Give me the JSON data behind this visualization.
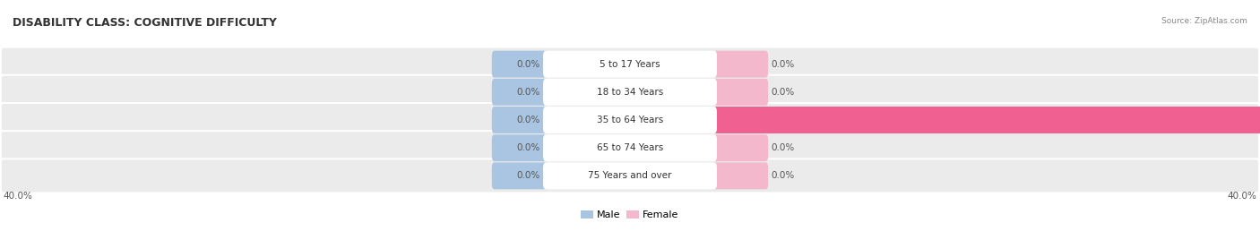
{
  "title": "DISABILITY CLASS: COGNITIVE DIFFICULTY",
  "source": "Source: ZipAtlas.com",
  "categories": [
    "5 to 17 Years",
    "18 to 34 Years",
    "35 to 64 Years",
    "65 to 74 Years",
    "75 Years and over"
  ],
  "male_values": [
    0.0,
    0.0,
    0.0,
    0.0,
    0.0
  ],
  "female_values": [
    0.0,
    0.0,
    40.0,
    0.0,
    0.0
  ],
  "male_color": "#aac5e2",
  "female_color_light": "#f4b8cc",
  "female_color_full": "#f06090",
  "row_bg_color": "#ebebeb",
  "row_bg_alt": "#e0e0e0",
  "max_value": 40.0,
  "title_fontsize": 9,
  "label_fontsize": 7.5,
  "legend_fontsize": 8,
  "value_label_fontsize": 7.5,
  "axis_label_left": "40.0%",
  "axis_label_right": "40.0%"
}
